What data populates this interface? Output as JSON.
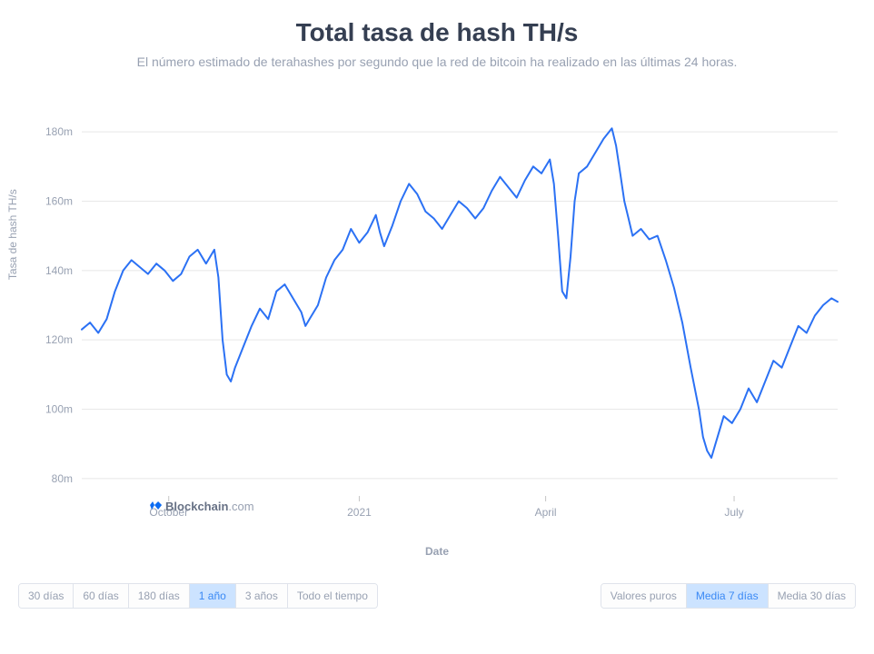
{
  "title": "Total tasa de hash TH/s",
  "subtitle": "El número estimado de terahashes por segundo que la red de bitcoin ha realizado en las últimas 24 horas.",
  "y_axis_label": "Tasa de hash TH/s",
  "x_axis_label": "Date",
  "watermark_brand": "Blockchain",
  "watermark_suffix": ".com",
  "chart": {
    "type": "line",
    "line_color": "#2b71f4",
    "line_width": 2,
    "background_color": "#ffffff",
    "grid_color": "#e8e8e8",
    "axis_text_color": "#98a1b2",
    "title_fontsize": 28,
    "subtitle_fontsize": 14,
    "label_fontsize": 12,
    "y_ticks": [
      80,
      100,
      120,
      140,
      160,
      180
    ],
    "y_tick_labels": [
      "80m",
      "100m",
      "120m",
      "140m",
      "160m",
      "180m"
    ],
    "ylim": [
      75,
      185
    ],
    "x_domain": [
      0,
      365
    ],
    "x_ticks": [
      {
        "pos": 42,
        "label": "October"
      },
      {
        "pos": 134,
        "label": "2021"
      },
      {
        "pos": 224,
        "label": "April"
      },
      {
        "pos": 315,
        "label": "July"
      }
    ],
    "series": [
      {
        "x": 0,
        "y": 123
      },
      {
        "x": 4,
        "y": 125
      },
      {
        "x": 8,
        "y": 122
      },
      {
        "x": 12,
        "y": 126
      },
      {
        "x": 16,
        "y": 134
      },
      {
        "x": 20,
        "y": 140
      },
      {
        "x": 24,
        "y": 143
      },
      {
        "x": 28,
        "y": 141
      },
      {
        "x": 32,
        "y": 139
      },
      {
        "x": 36,
        "y": 142
      },
      {
        "x": 40,
        "y": 140
      },
      {
        "x": 44,
        "y": 137
      },
      {
        "x": 48,
        "y": 139
      },
      {
        "x": 52,
        "y": 144
      },
      {
        "x": 56,
        "y": 146
      },
      {
        "x": 60,
        "y": 142
      },
      {
        "x": 64,
        "y": 146
      },
      {
        "x": 66,
        "y": 138
      },
      {
        "x": 68,
        "y": 120
      },
      {
        "x": 70,
        "y": 110
      },
      {
        "x": 72,
        "y": 108
      },
      {
        "x": 74,
        "y": 112
      },
      {
        "x": 78,
        "y": 118
      },
      {
        "x": 82,
        "y": 124
      },
      {
        "x": 86,
        "y": 129
      },
      {
        "x": 90,
        "y": 126
      },
      {
        "x": 94,
        "y": 134
      },
      {
        "x": 98,
        "y": 136
      },
      {
        "x": 102,
        "y": 132
      },
      {
        "x": 106,
        "y": 128
      },
      {
        "x": 108,
        "y": 124
      },
      {
        "x": 110,
        "y": 126
      },
      {
        "x": 114,
        "y": 130
      },
      {
        "x": 118,
        "y": 138
      },
      {
        "x": 122,
        "y": 143
      },
      {
        "x": 126,
        "y": 146
      },
      {
        "x": 130,
        "y": 152
      },
      {
        "x": 134,
        "y": 148
      },
      {
        "x": 138,
        "y": 151
      },
      {
        "x": 142,
        "y": 156
      },
      {
        "x": 144,
        "y": 151
      },
      {
        "x": 146,
        "y": 147
      },
      {
        "x": 150,
        "y": 153
      },
      {
        "x": 154,
        "y": 160
      },
      {
        "x": 158,
        "y": 165
      },
      {
        "x": 162,
        "y": 162
      },
      {
        "x": 166,
        "y": 157
      },
      {
        "x": 170,
        "y": 155
      },
      {
        "x": 174,
        "y": 152
      },
      {
        "x": 178,
        "y": 156
      },
      {
        "x": 182,
        "y": 160
      },
      {
        "x": 186,
        "y": 158
      },
      {
        "x": 190,
        "y": 155
      },
      {
        "x": 194,
        "y": 158
      },
      {
        "x": 198,
        "y": 163
      },
      {
        "x": 202,
        "y": 167
      },
      {
        "x": 206,
        "y": 164
      },
      {
        "x": 210,
        "y": 161
      },
      {
        "x": 214,
        "y": 166
      },
      {
        "x": 218,
        "y": 170
      },
      {
        "x": 222,
        "y": 168
      },
      {
        "x": 226,
        "y": 172
      },
      {
        "x": 228,
        "y": 165
      },
      {
        "x": 230,
        "y": 150
      },
      {
        "x": 232,
        "y": 134
      },
      {
        "x": 234,
        "y": 132
      },
      {
        "x": 236,
        "y": 144
      },
      {
        "x": 238,
        "y": 160
      },
      {
        "x": 240,
        "y": 168
      },
      {
        "x": 244,
        "y": 170
      },
      {
        "x": 248,
        "y": 174
      },
      {
        "x": 252,
        "y": 178
      },
      {
        "x": 256,
        "y": 181
      },
      {
        "x": 258,
        "y": 176
      },
      {
        "x": 260,
        "y": 168
      },
      {
        "x": 262,
        "y": 160
      },
      {
        "x": 264,
        "y": 155
      },
      {
        "x": 266,
        "y": 150
      },
      {
        "x": 270,
        "y": 152
      },
      {
        "x": 274,
        "y": 149
      },
      {
        "x": 278,
        "y": 150
      },
      {
        "x": 282,
        "y": 143
      },
      {
        "x": 286,
        "y": 135
      },
      {
        "x": 290,
        "y": 125
      },
      {
        "x": 294,
        "y": 112
      },
      {
        "x": 298,
        "y": 100
      },
      {
        "x": 300,
        "y": 92
      },
      {
        "x": 302,
        "y": 88
      },
      {
        "x": 304,
        "y": 86
      },
      {
        "x": 306,
        "y": 90
      },
      {
        "x": 310,
        "y": 98
      },
      {
        "x": 314,
        "y": 96
      },
      {
        "x": 318,
        "y": 100
      },
      {
        "x": 322,
        "y": 106
      },
      {
        "x": 326,
        "y": 102
      },
      {
        "x": 330,
        "y": 108
      },
      {
        "x": 334,
        "y": 114
      },
      {
        "x": 338,
        "y": 112
      },
      {
        "x": 342,
        "y": 118
      },
      {
        "x": 346,
        "y": 124
      },
      {
        "x": 350,
        "y": 122
      },
      {
        "x": 354,
        "y": 127
      },
      {
        "x": 358,
        "y": 130
      },
      {
        "x": 362,
        "y": 132
      },
      {
        "x": 365,
        "y": 131
      }
    ]
  },
  "time_buttons": [
    {
      "label": "30 días",
      "active": false
    },
    {
      "label": "60 días",
      "active": false
    },
    {
      "label": "180 días",
      "active": false
    },
    {
      "label": "1 año",
      "active": true
    },
    {
      "label": "3 años",
      "active": false
    },
    {
      "label": "Todo el tiempo",
      "active": false
    }
  ],
  "smoothing_buttons": [
    {
      "label": "Valores puros",
      "active": false
    },
    {
      "label": "Media 7 días",
      "active": true
    },
    {
      "label": "Media 30 días",
      "active": false
    }
  ]
}
